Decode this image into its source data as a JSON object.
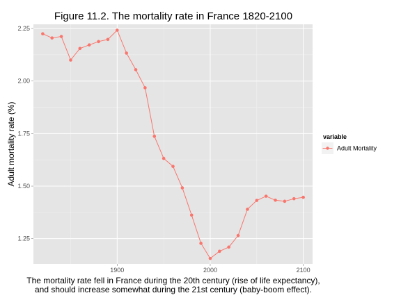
{
  "chart_data": {
    "type": "line",
    "title": "Figure 11.2. The mortality rate in France 1820-2100",
    "xlabel": "",
    "ylabel": "Adult mortality rate (%)",
    "caption_lines": [
      "The mortality rate fell in France during the 20th century (rise of life expectancy),",
      "and should increase somewhat during the 21st century (baby-boom effect)."
    ],
    "xlim": [
      1810,
      2110
    ],
    "ylim": [
      1.13,
      2.27
    ],
    "x_ticks": [
      1900,
      2000,
      2100
    ],
    "x_tick_labels": [
      "1900",
      "2000",
      "2100"
    ],
    "y_ticks": [
      1.25,
      1.5,
      1.75,
      2.0,
      2.25
    ],
    "y_tick_labels": [
      "1.25",
      "1.50",
      "1.75",
      "2.00",
      "2.25"
    ],
    "grid": true,
    "legend": {
      "title": "variable",
      "position": "right",
      "entries": [
        "Adult Mortality"
      ]
    },
    "series": [
      {
        "name": "Adult Mortality",
        "color": "#F8766D",
        "x": [
          1820,
          1830,
          1840,
          1850,
          1860,
          1870,
          1880,
          1890,
          1900,
          1910,
          1920,
          1930,
          1940,
          1950,
          1960,
          1970,
          1980,
          1990,
          2000,
          2010,
          2020,
          2030,
          2040,
          2050,
          2060,
          2070,
          2080,
          2090,
          2100
        ],
        "y": [
          2.225,
          2.205,
          2.212,
          2.1,
          2.155,
          2.172,
          2.188,
          2.198,
          2.242,
          2.133,
          2.054,
          1.968,
          1.737,
          1.632,
          1.594,
          1.492,
          1.362,
          1.228,
          1.156,
          1.19,
          1.21,
          1.265,
          1.39,
          1.432,
          1.452,
          1.433,
          1.428,
          1.44,
          1.447
        ]
      }
    ]
  }
}
